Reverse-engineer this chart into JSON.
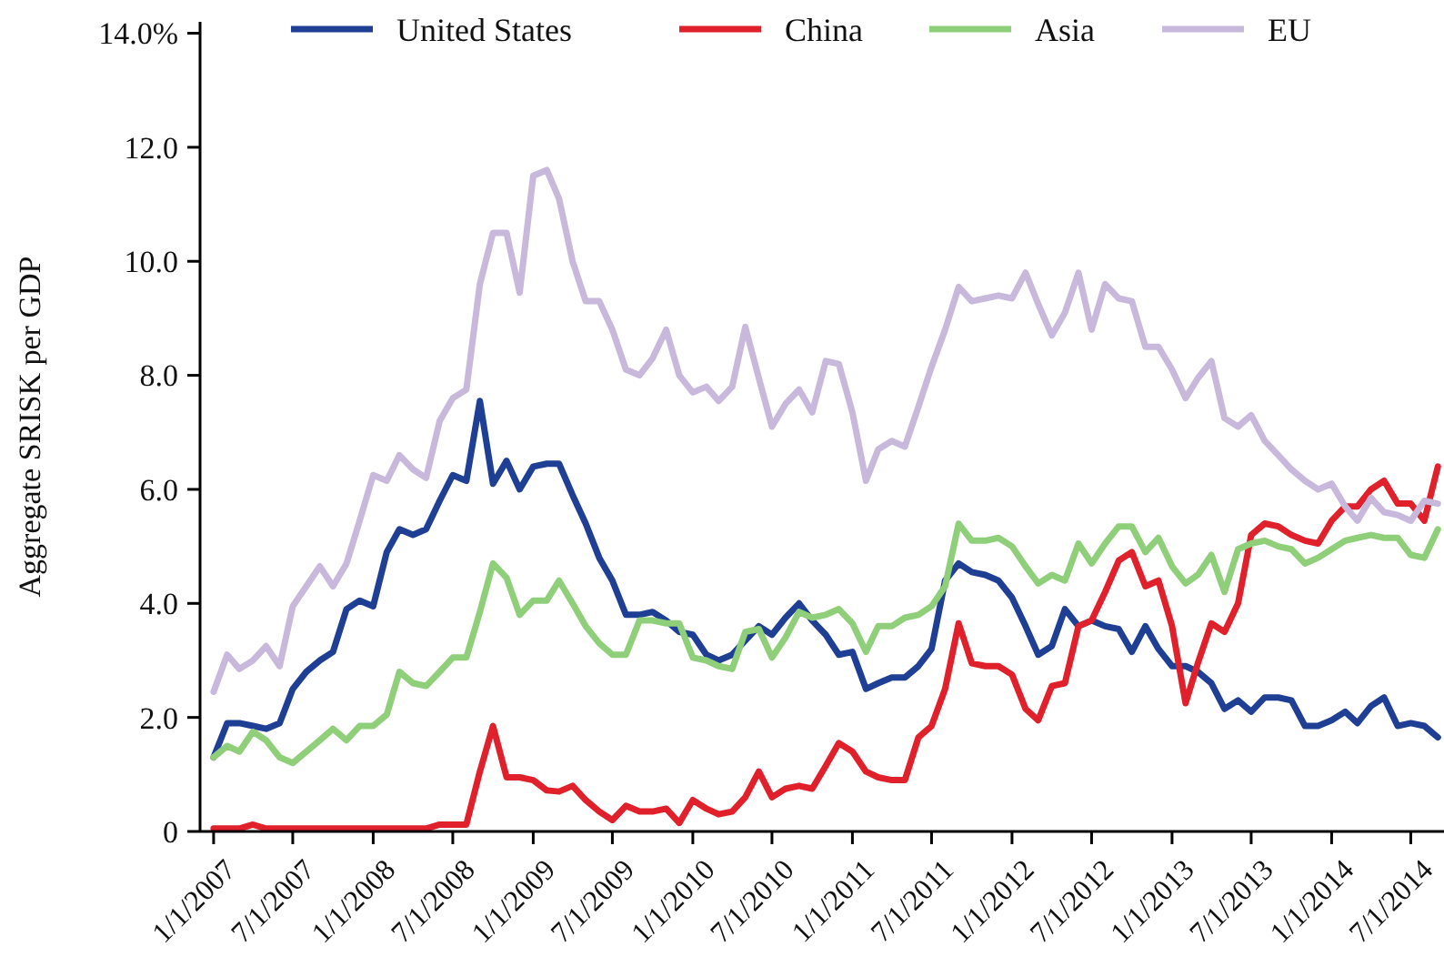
{
  "chart_data": {
    "type": "line",
    "ylabel": "Aggregate SRISK per GDP",
    "legend": "top",
    "grid": false,
    "line_style": "solid",
    "marker": "none",
    "x": [
      "2007-01",
      "2007-02",
      "2007-03",
      "2007-04",
      "2007-05",
      "2007-06",
      "2007-07",
      "2007-08",
      "2007-09",
      "2007-10",
      "2007-11",
      "2007-12",
      "2008-01",
      "2008-02",
      "2008-03",
      "2008-04",
      "2008-05",
      "2008-06",
      "2008-07",
      "2008-08",
      "2008-09",
      "2008-10",
      "2008-11",
      "2008-12",
      "2009-01",
      "2009-02",
      "2009-03",
      "2009-04",
      "2009-05",
      "2009-06",
      "2009-07",
      "2009-08",
      "2009-09",
      "2009-10",
      "2009-11",
      "2009-12",
      "2010-01",
      "2010-02",
      "2010-03",
      "2010-04",
      "2010-05",
      "2010-06",
      "2010-07",
      "2010-08",
      "2010-09",
      "2010-10",
      "2010-11",
      "2010-12",
      "2011-01",
      "2011-02",
      "2011-03",
      "2011-04",
      "2011-05",
      "2011-06",
      "2011-07",
      "2011-08",
      "2011-09",
      "2011-10",
      "2011-11",
      "2011-12",
      "2012-01",
      "2012-02",
      "2012-03",
      "2012-04",
      "2012-05",
      "2012-06",
      "2012-07",
      "2012-08",
      "2012-09",
      "2012-10",
      "2012-11",
      "2012-12",
      "2013-01",
      "2013-02",
      "2013-03",
      "2013-04",
      "2013-05",
      "2013-06",
      "2013-07",
      "2013-08",
      "2013-09",
      "2013-10",
      "2013-11",
      "2013-12",
      "2014-01",
      "2014-02",
      "2014-03",
      "2014-04",
      "2014-05",
      "2014-06",
      "2014-07",
      "2014-08",
      "2014-09"
    ],
    "xlim": [
      "2006-12-01",
      "2014-09-15"
    ],
    "xticks": [
      {
        "value": "2007-01-01",
        "label": "1/1/2007"
      },
      {
        "value": "2007-07-01",
        "label": "7/1/2007"
      },
      {
        "value": "2008-01-01",
        "label": "1/1/2008"
      },
      {
        "value": "2008-07-01",
        "label": "7/1/2008"
      },
      {
        "value": "2009-01-01",
        "label": "1/1/2009"
      },
      {
        "value": "2009-07-01",
        "label": "7/1/2009"
      },
      {
        "value": "2010-01-01",
        "label": "1/1/2010"
      },
      {
        "value": "2010-07-01",
        "label": "7/1/2010"
      },
      {
        "value": "2011-01-01",
        "label": "1/1/2011"
      },
      {
        "value": "2011-07-01",
        "label": "7/1/2011"
      },
      {
        "value": "2012-01-01",
        "label": "1/1/2012"
      },
      {
        "value": "2012-07-01",
        "label": "7/1/2012"
      },
      {
        "value": "2013-01-01",
        "label": "1/1/2013"
      },
      {
        "value": "2013-07-01",
        "label": "7/1/2013"
      },
      {
        "value": "2014-01-01",
        "label": "1/1/2014"
      },
      {
        "value": "2014-07-01",
        "label": "7/1/2014"
      }
    ],
    "ylim": [
      0,
      14.2
    ],
    "yticks": [
      0,
      {
        "value": 2,
        "label": "2.0"
      },
      {
        "value": 4,
        "label": "4.0"
      },
      {
        "value": 6,
        "label": "6.0"
      },
      {
        "value": 8,
        "label": "8.0"
      },
      {
        "value": 10,
        "label": "10.0"
      },
      {
        "value": 12,
        "label": "12.0"
      },
      {
        "value": 14,
        "label": "14.0%"
      }
    ],
    "series": [
      {
        "name": "United States",
        "color": "#1f3f95",
        "values": [
          1.3,
          1.9,
          1.9,
          1.85,
          1.8,
          1.9,
          2.5,
          2.8,
          3.0,
          3.15,
          3.9,
          4.05,
          3.95,
          4.9,
          5.3,
          5.2,
          5.3,
          5.8,
          6.25,
          6.15,
          7.55,
          6.1,
          6.5,
          6.0,
          6.4,
          6.45,
          6.45,
          5.9,
          5.4,
          4.8,
          4.4,
          3.8,
          3.8,
          3.85,
          3.7,
          3.5,
          3.45,
          3.1,
          3.0,
          3.1,
          3.35,
          3.6,
          3.45,
          3.75,
          4.0,
          3.7,
          3.45,
          3.1,
          3.15,
          2.5,
          2.6,
          2.7,
          2.7,
          2.9,
          3.2,
          4.4,
          4.7,
          4.55,
          4.5,
          4.4,
          4.1,
          3.6,
          3.1,
          3.25,
          3.9,
          3.6,
          3.7,
          3.6,
          3.55,
          3.15,
          3.6,
          3.2,
          2.9,
          2.9,
          2.8,
          2.6,
          2.15,
          2.3,
          2.1,
          2.35,
          2.35,
          2.3,
          1.85,
          1.85,
          1.95,
          2.1,
          1.9,
          2.2,
          2.35,
          1.85,
          1.9,
          1.85,
          1.65
        ]
      },
      {
        "name": "China",
        "color": "#e0202a",
        "values": [
          0.05,
          0.05,
          0.05,
          0.12,
          0.05,
          0.05,
          0.05,
          0.05,
          0.05,
          0.05,
          0.05,
          0.05,
          0.05,
          0.05,
          0.05,
          0.05,
          0.05,
          0.12,
          0.12,
          0.12,
          1.05,
          1.85,
          0.95,
          0.95,
          0.9,
          0.72,
          0.7,
          0.8,
          0.55,
          0.35,
          0.2,
          0.45,
          0.35,
          0.35,
          0.4,
          0.15,
          0.55,
          0.4,
          0.3,
          0.35,
          0.6,
          1.05,
          0.6,
          0.75,
          0.8,
          0.75,
          1.15,
          1.55,
          1.4,
          1.05,
          0.95,
          0.9,
          0.9,
          1.65,
          1.85,
          2.5,
          3.65,
          2.95,
          2.9,
          2.9,
          2.75,
          2.15,
          1.95,
          2.55,
          2.6,
          3.6,
          3.7,
          4.2,
          4.75,
          4.9,
          4.3,
          4.4,
          3.6,
          2.25,
          2.95,
          3.65,
          3.5,
          4.0,
          5.2,
          5.4,
          5.35,
          5.2,
          5.1,
          5.05,
          5.45,
          5.7,
          5.7,
          6.0,
          6.15,
          5.75,
          5.75,
          5.45,
          6.4
        ]
      },
      {
        "name": "Asia",
        "color": "#90cf7a",
        "values": [
          1.3,
          1.5,
          1.4,
          1.75,
          1.6,
          1.3,
          1.2,
          1.4,
          1.6,
          1.8,
          1.6,
          1.85,
          1.85,
          2.05,
          2.8,
          2.6,
          2.55,
          2.8,
          3.05,
          3.05,
          3.85,
          4.7,
          4.45,
          3.8,
          4.05,
          4.05,
          4.4,
          4.0,
          3.6,
          3.3,
          3.1,
          3.1,
          3.7,
          3.7,
          3.65,
          3.65,
          3.05,
          3.0,
          2.9,
          2.85,
          3.5,
          3.55,
          3.05,
          3.4,
          3.85,
          3.75,
          3.8,
          3.9,
          3.65,
          3.15,
          3.6,
          3.6,
          3.75,
          3.8,
          3.95,
          4.3,
          5.4,
          5.1,
          5.1,
          5.15,
          5.0,
          4.65,
          4.35,
          4.5,
          4.4,
          5.05,
          4.7,
          5.05,
          5.35,
          5.35,
          4.9,
          5.15,
          4.65,
          4.35,
          4.5,
          4.85,
          4.2,
          4.95,
          5.05,
          5.1,
          5.0,
          4.95,
          4.7,
          4.8,
          4.95,
          5.1,
          5.15,
          5.2,
          5.15,
          5.15,
          4.85,
          4.8,
          5.3
        ]
      },
      {
        "name": "EU",
        "color": "#c7b8dc",
        "values": [
          2.45,
          3.1,
          2.85,
          3.0,
          3.25,
          2.9,
          3.95,
          4.3,
          4.65,
          4.3,
          4.7,
          5.45,
          6.25,
          6.15,
          6.6,
          6.35,
          6.2,
          7.2,
          7.6,
          7.75,
          9.6,
          10.5,
          10.5,
          9.45,
          11.5,
          11.6,
          11.1,
          10.0,
          9.3,
          9.3,
          8.8,
          8.1,
          8.0,
          8.3,
          8.8,
          8.0,
          7.7,
          7.8,
          7.55,
          7.8,
          8.85,
          7.95,
          7.1,
          7.5,
          7.75,
          7.35,
          8.25,
          8.2,
          7.35,
          6.15,
          6.7,
          6.85,
          6.75,
          7.45,
          8.15,
          8.8,
          9.55,
          9.3,
          9.35,
          9.4,
          9.35,
          9.8,
          9.25,
          8.7,
          9.1,
          9.8,
          8.8,
          9.6,
          9.35,
          9.3,
          8.5,
          8.5,
          8.1,
          7.6,
          7.95,
          8.25,
          7.25,
          7.1,
          7.3,
          6.85,
          6.6,
          6.35,
          6.15,
          6.0,
          6.1,
          5.7,
          5.45,
          5.85,
          5.6,
          5.55,
          5.45,
          5.8,
          5.75
        ]
      }
    ]
  }
}
